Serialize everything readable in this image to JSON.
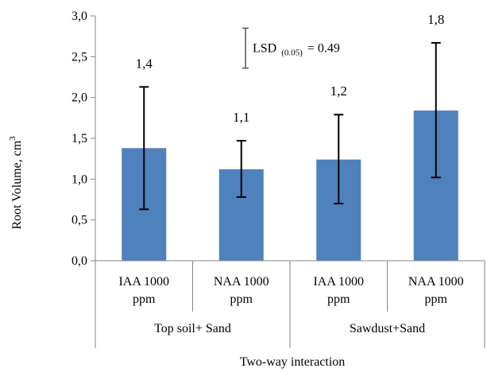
{
  "chart_data": {
    "type": "bar",
    "categories": [
      "IAA 1000 ppm",
      "NAA 1000 ppm",
      "IAA 1000 ppm",
      "NAA 1000 ppm"
    ],
    "category_lines": [
      [
        "IAA 1000",
        "ppm"
      ],
      [
        "NAA 1000",
        "ppm"
      ],
      [
        "IAA 1000",
        "ppm"
      ],
      [
        "NAA 1000",
        "ppm"
      ]
    ],
    "groups": [
      {
        "label": "Top soil+ Sand",
        "categories": [
          0,
          1
        ]
      },
      {
        "label": "Sawdust+Sand",
        "categories": [
          2,
          3
        ]
      }
    ],
    "values": [
      1.38,
      1.12,
      1.24,
      1.84
    ],
    "data_labels": [
      "1,4",
      "1,1",
      "1,2",
      "1,8"
    ],
    "error_low": [
      0.63,
      0.78,
      0.7,
      1.02
    ],
    "error_high": [
      2.13,
      1.47,
      1.79,
      2.67
    ],
    "ylim": [
      0,
      3.0
    ],
    "yticks": [
      0,
      0.5,
      1.0,
      1.5,
      2.0,
      2.5,
      3.0
    ],
    "ytick_labels": [
      "0,0",
      "0,5",
      "1,0",
      "1,5",
      "2,0",
      "2,5",
      "3,0"
    ],
    "ylabel": "Root Volume, cm",
    "ylabel_sup": "3",
    "xlabel": "Two-way interaction",
    "annotation": {
      "lsd_main": "LSD",
      "lsd_sub": "(0.05)",
      "lsd_value": "= 0.49",
      "lsd_top": 2.85,
      "lsd_bottom": 2.36
    },
    "grid": false,
    "bar_color": "#4f81bd"
  }
}
